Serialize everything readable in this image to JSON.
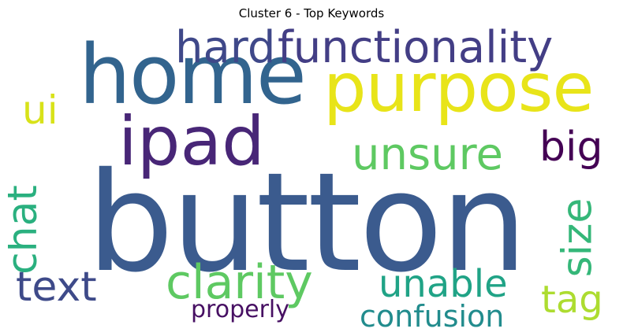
{
  "title": "Cluster 6 - Top Keywords",
  "words": {
    "button": {
      "text": "button",
      "color": "#3b5b8e"
    },
    "home": {
      "text": "home",
      "color": "#32648e"
    },
    "purpose": {
      "text": "purpose",
      "color": "#e8e419"
    },
    "functionality": {
      "text": "functionality",
      "color": "#433e85"
    },
    "hard": {
      "text": "hard",
      "color": "#3f4889"
    },
    "ipad": {
      "text": "ipad",
      "color": "#482677"
    },
    "unsure": {
      "text": "unsure",
      "color": "#5ec962"
    },
    "big": {
      "text": "big",
      "color": "#440154"
    },
    "ui": {
      "text": "ui",
      "color": "#d8e219"
    },
    "chat": {
      "text": "chat",
      "color": "#2ab07f"
    },
    "size": {
      "text": "size",
      "color": "#35b779"
    },
    "text": {
      "text": "text",
      "color": "#3e4a89"
    },
    "clarity": {
      "text": "clarity",
      "color": "#5ec962"
    },
    "unable": {
      "text": "unable",
      "color": "#20a386"
    },
    "tag": {
      "text": "tag",
      "color": "#addc30"
    },
    "properly": {
      "text": "properly",
      "color": "#471063"
    },
    "confusion": {
      "text": "confusion",
      "color": "#228c8d"
    }
  }
}
